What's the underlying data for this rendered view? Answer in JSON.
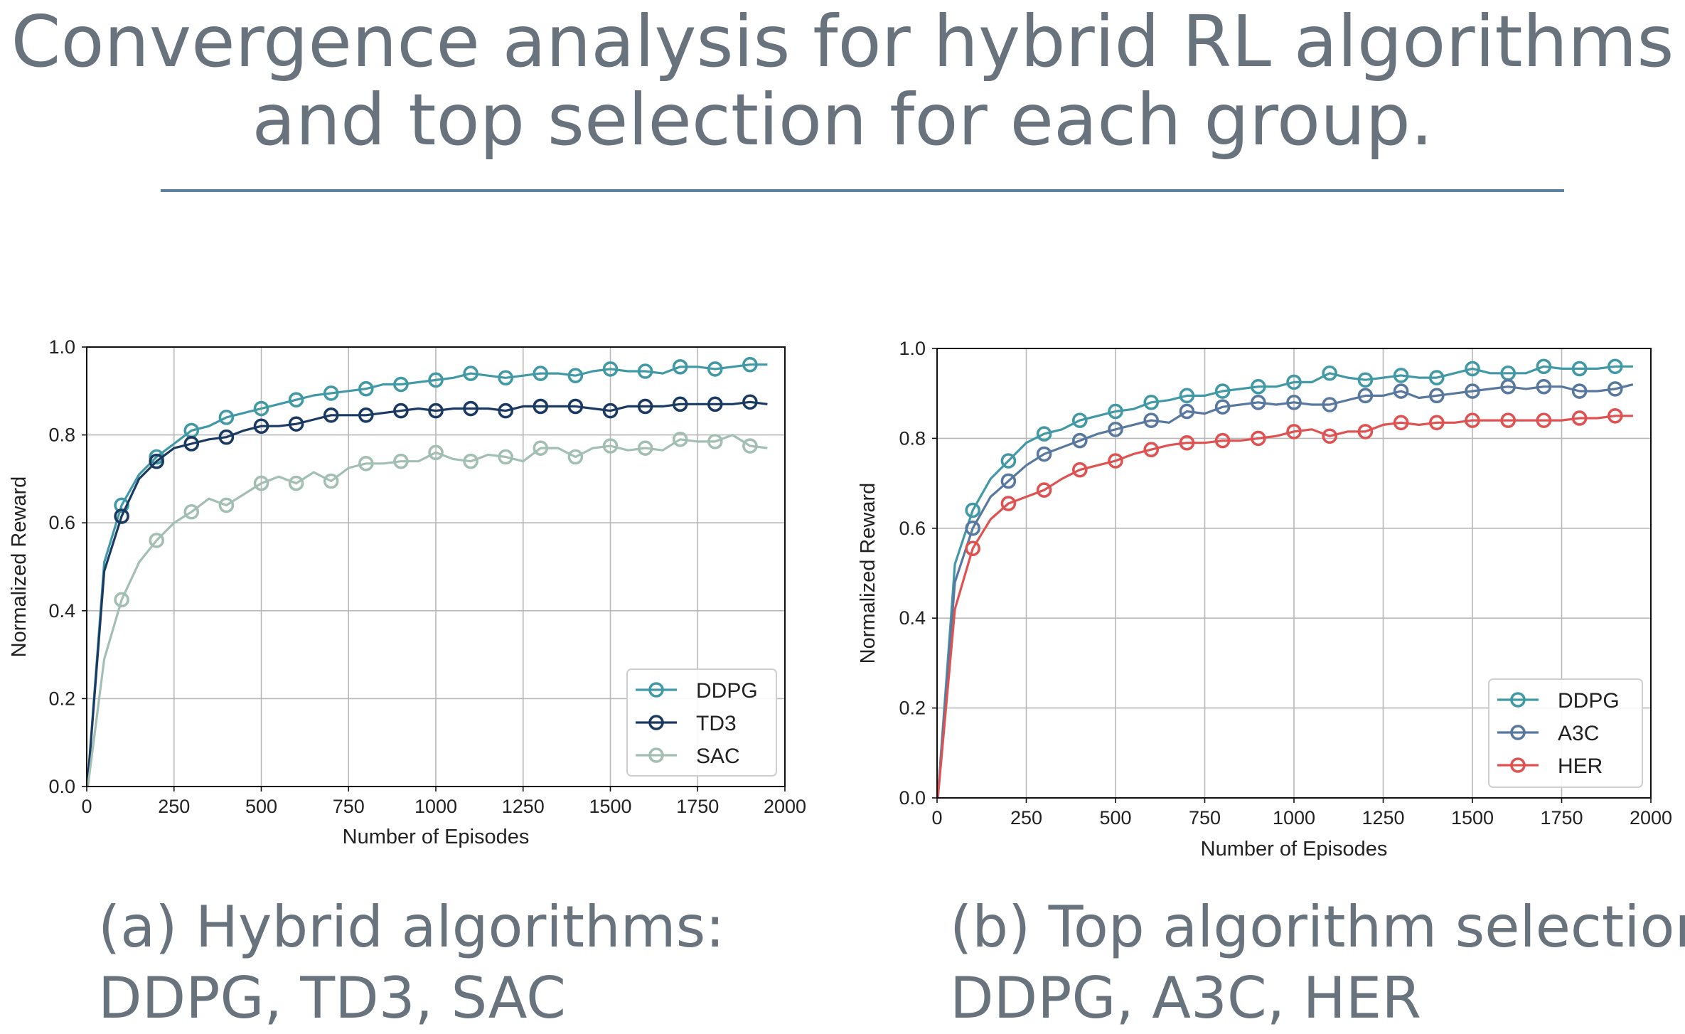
{
  "page": {
    "title_line1": "Convergence analysis for hybrid RL algorithms",
    "title_line2": "and top selection for each group."
  },
  "captions": {
    "a_line1": "(a) Hybrid algorithms:",
    "a_line2": "DDPG, TD3, SAC",
    "b_line1": "(b) Top algorithm selection:",
    "b_line2": "DDPG, A3C, HER"
  },
  "colors": {
    "title": "#68737d",
    "rule": "#5d7fa3",
    "DDPG": "#4299a6",
    "TD3": "#1b3a63",
    "SAC": "#a3bfb4",
    "A3C": "#5878a0",
    "HER": "#e05252"
  },
  "chart_data": [
    {
      "type": "line",
      "xlabel": "Number of Episodes",
      "ylabel": "Normalized Reward",
      "xlim": [
        0,
        2000
      ],
      "ylim": [
        0.0,
        1.0
      ],
      "xticks": [
        0,
        250,
        500,
        750,
        1000,
        1250,
        1500,
        1750,
        2000
      ],
      "yticks": [
        "0.0",
        "0.2",
        "0.4",
        "0.6",
        "0.8",
        "1.0"
      ],
      "grid": true,
      "legend_position": "lower-right",
      "x": [
        0,
        50,
        100,
        150,
        200,
        250,
        300,
        350,
        400,
        450,
        500,
        550,
        600,
        650,
        700,
        750,
        800,
        850,
        900,
        950,
        1000,
        1050,
        1100,
        1150,
        1200,
        1250,
        1300,
        1350,
        1400,
        1450,
        1500,
        1550,
        1600,
        1650,
        1700,
        1750,
        1800,
        1850,
        1900,
        1950
      ],
      "marker_every": 2,
      "series": [
        {
          "name": "DDPG",
          "values": [
            -0.02,
            0.51,
            0.64,
            0.71,
            0.75,
            0.78,
            0.81,
            0.82,
            0.84,
            0.85,
            0.86,
            0.87,
            0.88,
            0.89,
            0.895,
            0.9,
            0.905,
            0.915,
            0.915,
            0.92,
            0.925,
            0.93,
            0.94,
            0.935,
            0.93,
            0.935,
            0.94,
            0.94,
            0.935,
            0.945,
            0.95,
            0.945,
            0.945,
            0.94,
            0.955,
            0.955,
            0.95,
            0.955,
            0.96,
            0.96
          ]
        },
        {
          "name": "TD3",
          "values": [
            -0.02,
            0.49,
            0.615,
            0.7,
            0.74,
            0.77,
            0.78,
            0.79,
            0.795,
            0.81,
            0.82,
            0.82,
            0.825,
            0.835,
            0.845,
            0.845,
            0.845,
            0.85,
            0.855,
            0.86,
            0.855,
            0.86,
            0.86,
            0.86,
            0.855,
            0.865,
            0.865,
            0.865,
            0.865,
            0.86,
            0.855,
            0.865,
            0.865,
            0.865,
            0.87,
            0.87,
            0.87,
            0.87,
            0.875,
            0.87
          ]
        },
        {
          "name": "SAC",
          "values": [
            -0.02,
            0.29,
            0.425,
            0.51,
            0.56,
            0.6,
            0.625,
            0.655,
            0.64,
            0.665,
            0.69,
            0.705,
            0.69,
            0.715,
            0.695,
            0.725,
            0.735,
            0.735,
            0.74,
            0.74,
            0.76,
            0.745,
            0.74,
            0.755,
            0.75,
            0.74,
            0.77,
            0.77,
            0.75,
            0.77,
            0.775,
            0.765,
            0.77,
            0.765,
            0.79,
            0.785,
            0.785,
            0.8,
            0.775,
            0.77
          ]
        }
      ]
    },
    {
      "type": "line",
      "xlabel": "Number of Episodes",
      "ylabel": "Normalized Reward",
      "xlim": [
        0,
        2000
      ],
      "ylim": [
        0.0,
        1.0
      ],
      "xticks": [
        0,
        250,
        500,
        750,
        1000,
        1250,
        1500,
        1750,
        2000
      ],
      "yticks": [
        "0.0",
        "0.2",
        "0.4",
        "0.6",
        "0.8",
        "1.0"
      ],
      "grid": true,
      "legend_position": "lower-right",
      "x": [
        0,
        50,
        100,
        150,
        200,
        250,
        300,
        350,
        400,
        450,
        500,
        550,
        600,
        650,
        700,
        750,
        800,
        850,
        900,
        950,
        1000,
        1050,
        1100,
        1150,
        1200,
        1250,
        1300,
        1350,
        1400,
        1450,
        1500,
        1550,
        1600,
        1650,
        1700,
        1750,
        1800,
        1850,
        1900,
        1950
      ],
      "marker_every": 2,
      "series": [
        {
          "name": "DDPG",
          "values": [
            -0.02,
            0.52,
            0.64,
            0.71,
            0.75,
            0.79,
            0.81,
            0.82,
            0.84,
            0.85,
            0.86,
            0.865,
            0.88,
            0.885,
            0.895,
            0.895,
            0.905,
            0.91,
            0.915,
            0.915,
            0.925,
            0.925,
            0.945,
            0.935,
            0.93,
            0.935,
            0.94,
            0.935,
            0.935,
            0.945,
            0.955,
            0.945,
            0.945,
            0.945,
            0.96,
            0.955,
            0.955,
            0.955,
            0.96,
            0.96
          ]
        },
        {
          "name": "A3C",
          "values": [
            -0.02,
            0.48,
            0.6,
            0.67,
            0.705,
            0.74,
            0.765,
            0.78,
            0.795,
            0.81,
            0.82,
            0.83,
            0.84,
            0.835,
            0.86,
            0.855,
            0.87,
            0.875,
            0.88,
            0.875,
            0.88,
            0.875,
            0.875,
            0.885,
            0.895,
            0.895,
            0.905,
            0.89,
            0.895,
            0.9,
            0.905,
            0.91,
            0.915,
            0.91,
            0.915,
            0.915,
            0.905,
            0.905,
            0.91,
            0.92
          ]
        },
        {
          "name": "HER",
          "values": [
            -0.02,
            0.42,
            0.555,
            0.62,
            0.655,
            0.67,
            0.685,
            0.71,
            0.73,
            0.74,
            0.75,
            0.765,
            0.775,
            0.785,
            0.79,
            0.79,
            0.795,
            0.795,
            0.8,
            0.805,
            0.815,
            0.82,
            0.805,
            0.815,
            0.815,
            0.83,
            0.835,
            0.83,
            0.835,
            0.835,
            0.84,
            0.84,
            0.84,
            0.84,
            0.84,
            0.84,
            0.845,
            0.845,
            0.85,
            0.85
          ]
        }
      ]
    }
  ]
}
